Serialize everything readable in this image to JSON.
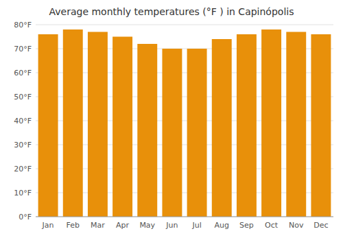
{
  "chart_data": {
    "type": "bar",
    "title": "Average monthly temperatures (°F ) in Capinópolis",
    "categories": [
      "Jan",
      "Feb",
      "Mar",
      "Apr",
      "May",
      "Jun",
      "Jul",
      "Aug",
      "Sep",
      "Oct",
      "Nov",
      "Dec"
    ],
    "values": [
      76,
      78,
      77,
      75,
      72,
      70,
      70,
      74,
      76,
      78,
      77,
      76
    ],
    "color": "#E8900A",
    "ylim": [
      0,
      80
    ],
    "yticks": [
      {
        "value": 0,
        "label": "0°F"
      },
      {
        "value": 10,
        "label": "10°F"
      },
      {
        "value": 20,
        "label": "20°F"
      },
      {
        "value": 30,
        "label": "30°F"
      },
      {
        "value": 40,
        "label": "40°F"
      },
      {
        "value": 50,
        "label": "50°F"
      },
      {
        "value": 60,
        "label": "60°F"
      },
      {
        "value": 70,
        "label": "70°F"
      },
      {
        "value": 80,
        "label": "80°F"
      }
    ],
    "grid": true
  }
}
